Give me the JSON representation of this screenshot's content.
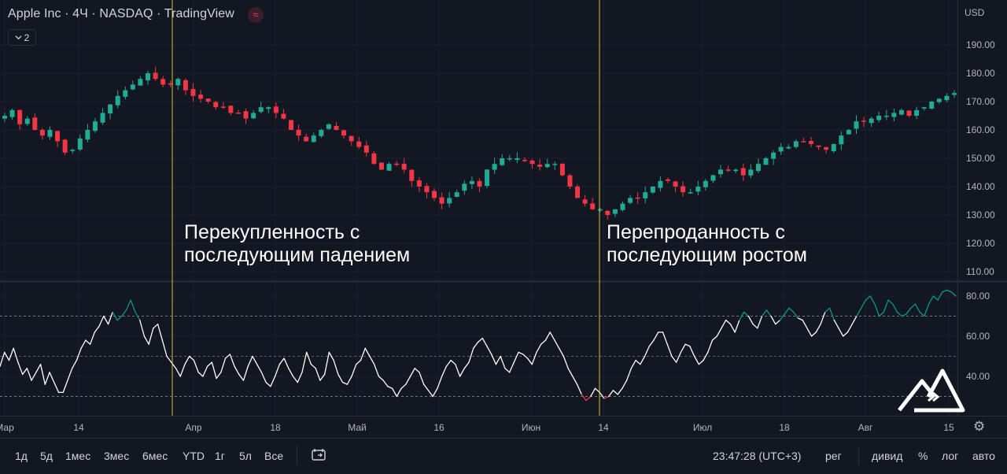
{
  "legend": {
    "title": "Apple Inc · 4Ч · NASDAQ · TradingView",
    "badge": "≈",
    "collapse_count": "2",
    "collapse_icon": "chevron-down-icon"
  },
  "price_scale": {
    "currency": "USD",
    "labels": [
      "190.00",
      "180.00",
      "170.00",
      "160.00",
      "150.00",
      "140.00",
      "130.00",
      "120.00",
      "110.00"
    ]
  },
  "indicator_scale": {
    "labels": [
      "80.00",
      "60.00",
      "40.00"
    ]
  },
  "time_axis": {
    "labels": [
      "Мар",
      "14",
      "Апр",
      "18",
      "Май",
      "16",
      "Июн",
      "14",
      "Июл",
      "18",
      "Авг",
      "15"
    ]
  },
  "annotations": {
    "overbought": [
      "Перекупленность с",
      "последующим падением"
    ],
    "oversold": [
      "Перепроданность с",
      "последующим ростом"
    ]
  },
  "bottom_bar": {
    "ranges": [
      "1д",
      "5д",
      "1мес",
      "3мес",
      "6мес",
      "YTD",
      "1г",
      "5л",
      "Все"
    ],
    "time": "23:47:28 (UTC+3)",
    "reg": "рег",
    "adj": "дивид",
    "percent": "%",
    "log": "лог",
    "auto": "авто"
  },
  "chart_data": [
    {
      "type": "candlestick",
      "symbol": "Apple Inc",
      "interval": "4Ч",
      "exchange": "NASDAQ",
      "currency": "USD",
      "ylim": [
        105,
        197
      ],
      "x_ticks": [
        "Мар",
        "14",
        "Апр",
        "18",
        "Май",
        "16",
        "Июн",
        "14",
        "Июл",
        "18",
        "Авг",
        "15"
      ],
      "close_path": [
        165,
        167,
        162,
        164,
        160,
        158,
        160,
        156,
        152,
        153,
        157,
        160,
        163,
        166,
        169,
        172,
        174,
        176,
        178,
        180,
        178,
        176,
        176,
        178,
        174,
        172,
        171,
        170,
        168,
        168,
        166,
        166,
        164,
        166,
        168,
        168,
        166,
        164,
        160,
        158,
        156,
        158,
        160,
        162,
        160,
        158,
        156,
        154,
        152,
        148,
        146,
        148,
        148,
        146,
        142,
        140,
        138,
        136,
        134,
        136,
        138,
        141,
        142,
        140,
        146,
        148,
        150,
        150,
        150,
        149,
        148,
        147,
        148,
        148,
        144,
        140,
        136,
        134,
        132,
        132,
        130,
        132,
        134,
        136,
        136,
        138,
        140,
        142,
        142,
        140,
        138,
        138,
        140,
        142,
        144,
        146,
        146,
        146,
        144,
        146,
        148,
        150,
        152,
        154,
        154,
        156,
        156,
        155,
        154,
        153,
        155,
        158,
        160,
        163,
        163,
        164,
        165,
        165,
        166,
        167,
        165,
        167,
        168,
        170,
        171,
        172,
        173
      ],
      "colors": {
        "up": "#22ab94",
        "down": "#f23645"
      }
    },
    {
      "type": "line",
      "name": "",
      "ylim": [
        8,
        88
      ],
      "levels": [
        70,
        50,
        30
      ],
      "levels_style": "dashed",
      "overbought_color": "#089981",
      "oversold_color": "#f23645",
      "line_color": "#ffffff",
      "values": [
        45,
        52,
        48,
        54,
        47,
        41,
        44,
        38,
        42,
        46,
        36,
        42,
        37,
        32,
        32,
        38,
        44,
        48,
        54,
        58,
        56,
        62,
        65,
        70,
        66,
        72,
        68,
        70,
        73,
        78,
        72,
        68,
        60,
        56,
        64,
        66,
        58,
        50,
        47,
        44,
        40,
        46,
        50,
        48,
        42,
        40,
        45,
        47,
        39,
        42,
        49,
        51,
        45,
        41,
        38,
        45,
        50,
        46,
        42,
        37,
        35,
        40,
        46,
        49,
        44,
        40,
        37,
        42,
        52,
        46,
        44,
        38,
        41,
        52,
        48,
        41,
        37,
        36,
        40,
        46,
        48,
        54,
        50,
        46,
        40,
        38,
        35,
        34,
        30,
        34,
        36,
        40,
        44,
        42,
        36,
        33,
        30,
        34,
        40,
        45,
        48,
        46,
        40,
        44,
        47,
        54,
        57,
        59,
        55,
        51,
        46,
        50,
        44,
        42,
        47,
        52,
        51,
        49,
        46,
        52,
        56,
        58,
        62,
        58,
        54,
        50,
        44,
        40,
        36,
        31,
        28,
        30,
        34,
        32,
        29,
        30,
        33,
        31,
        34,
        38,
        44,
        48,
        46,
        50,
        55,
        58,
        62,
        62,
        56,
        50,
        47,
        52,
        56,
        55,
        50,
        46,
        48,
        52,
        58,
        60,
        64,
        68,
        66,
        62,
        68,
        72,
        70,
        66,
        64,
        70,
        73,
        70,
        66,
        68,
        71,
        74,
        72,
        69,
        68,
        64,
        60,
        62,
        66,
        72,
        74,
        68,
        64,
        60,
        62,
        66,
        70,
        74,
        78,
        80,
        76,
        70,
        72,
        78,
        76,
        72,
        70,
        71,
        74,
        76,
        72,
        70,
        76,
        80,
        78,
        82,
        83,
        82,
        80
      ]
    }
  ]
}
